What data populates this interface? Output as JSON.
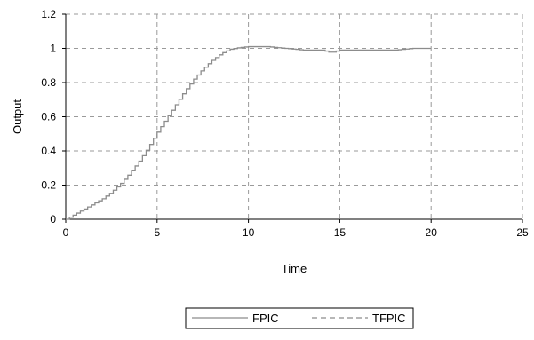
{
  "chart_data": {
    "type": "line",
    "xlabel": "Time",
    "ylabel": "Output",
    "xlim": [
      0,
      25
    ],
    "ylim": [
      0,
      1.2
    ],
    "x_ticks": [
      "0",
      "5",
      "10",
      "15",
      "20",
      "25"
    ],
    "y_ticks": [
      "0",
      "0.2",
      "0.4",
      "0.6",
      "0.8",
      "1",
      "1.2"
    ],
    "grid": true,
    "legend_position": "bottom",
    "series": [
      {
        "name": "FPIC",
        "style": "solid",
        "color": "#8c8c8c",
        "x": [
          0,
          0.5,
          1,
          1.5,
          2,
          2.5,
          3,
          3.5,
          4,
          4.5,
          5,
          5.5,
          6,
          6.5,
          7,
          7.5,
          8,
          8.5,
          9,
          9.5,
          10,
          11,
          12,
          13,
          14,
          14.5,
          15,
          16,
          17,
          18,
          19,
          20
        ],
        "y": [
          0,
          0.03,
          0.06,
          0.09,
          0.12,
          0.16,
          0.21,
          0.27,
          0.34,
          0.42,
          0.51,
          0.59,
          0.67,
          0.75,
          0.82,
          0.88,
          0.93,
          0.97,
          0.995,
          1.005,
          1.01,
          1.01,
          1.0,
          0.99,
          0.99,
          0.975,
          0.99,
          0.99,
          0.99,
          0.99,
          1.0,
          1.0
        ]
      },
      {
        "name": "TFPIC",
        "style": "dashed",
        "color": "#8c8c8c",
        "x": [],
        "y": []
      }
    ]
  }
}
